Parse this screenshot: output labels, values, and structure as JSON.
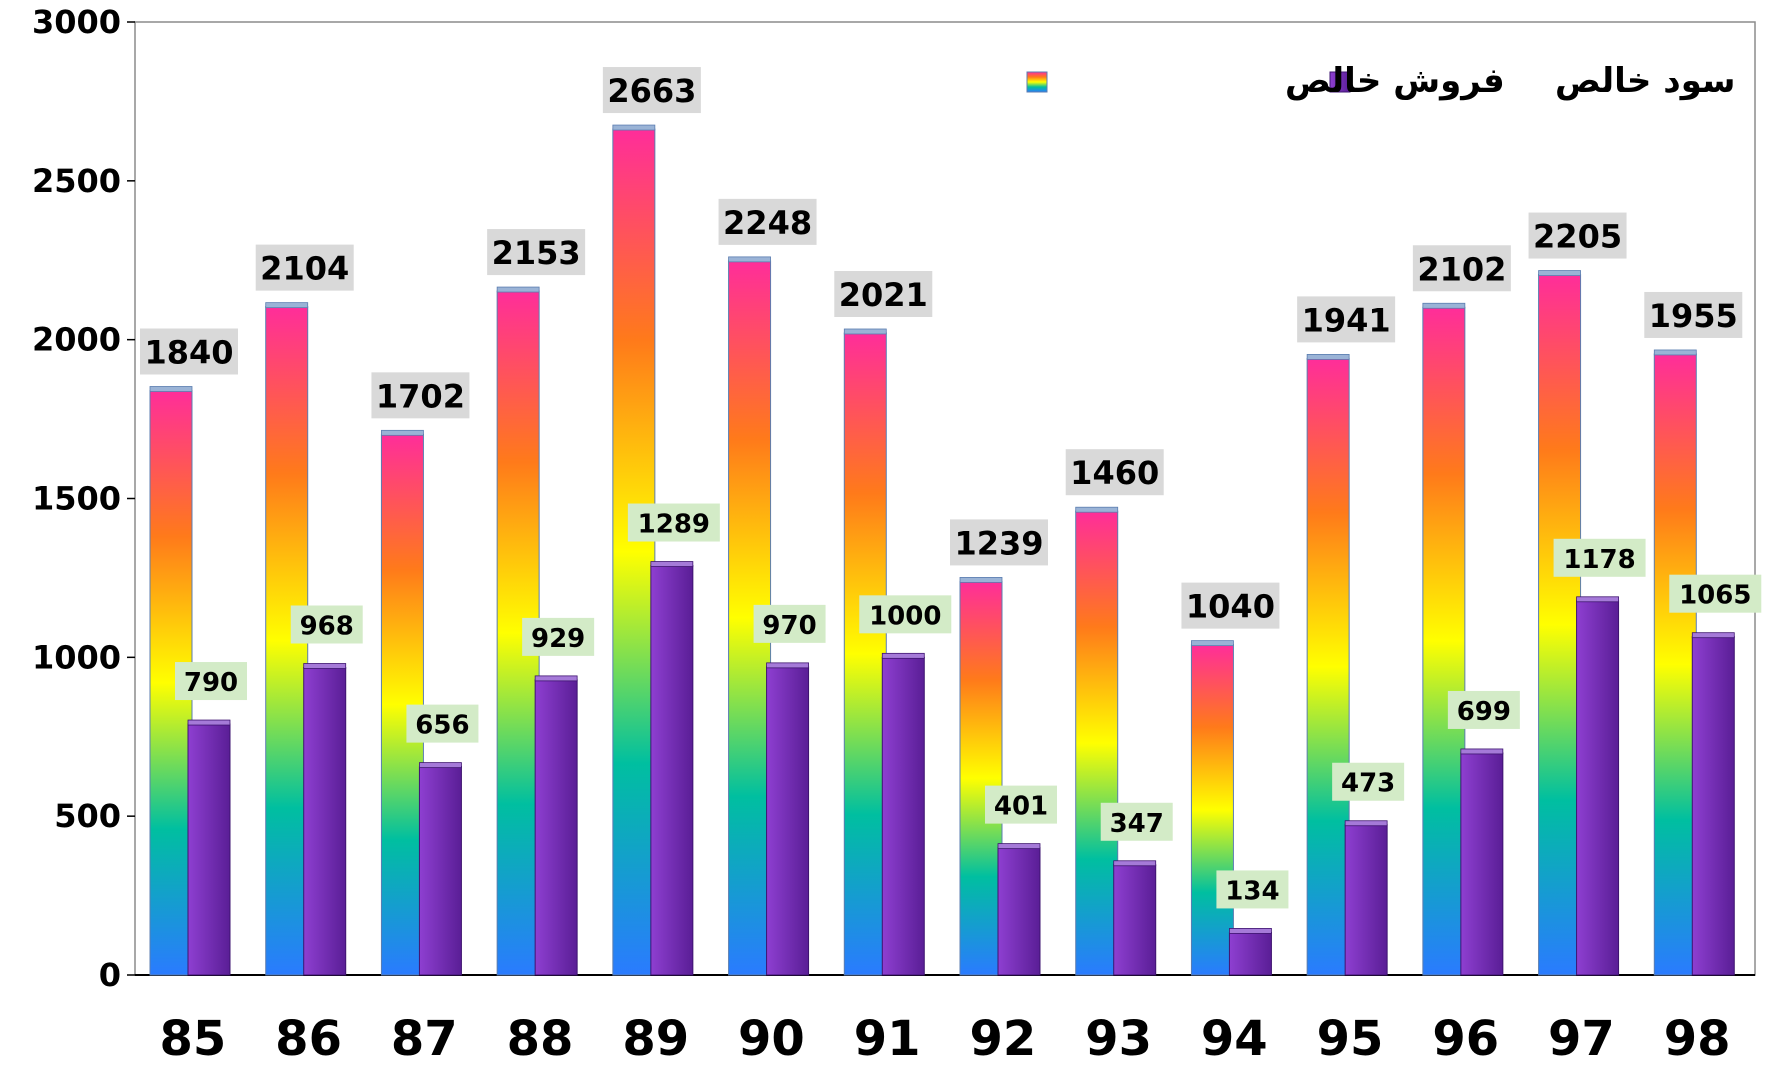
{
  "chart_data": {
    "type": "bar",
    "title": "",
    "xlabel": "",
    "ylabel": "",
    "categories": [
      "85",
      "86",
      "87",
      "88",
      "89",
      "90",
      "91",
      "92",
      "93",
      "94",
      "95",
      "96",
      "97",
      "98"
    ],
    "series": [
      {
        "name": "فروش خالص",
        "values": [
          1840,
          2104,
          1702,
          2153,
          2663,
          2248,
          2021,
          1239,
          1460,
          1040,
          1941,
          2102,
          2205,
          1955
        ],
        "fill": "gradient",
        "gradient_colors": [
          "#ff2d9a",
          "#ff7a1a",
          "#ffff00",
          "#00bfa0",
          "#2a7bff"
        ]
      },
      {
        "name": "سود خالص",
        "values": [
          790,
          968,
          656,
          929,
          1289,
          970,
          1000,
          401,
          347,
          134,
          473,
          699,
          1178,
          1065
        ],
        "fill": "purple",
        "gradient_colors": [
          "#8e3fd1",
          "#5a1e96"
        ]
      }
    ],
    "ylim": [
      0,
      3000
    ],
    "yticks": [
      0,
      500,
      1000,
      1500,
      2000,
      2500,
      3000
    ],
    "legend_position": "top-right",
    "grid": false,
    "data_labels": true,
    "label_backgrounds": {
      "sales": "#d9d9d9",
      "profit": "#d3ebc7"
    }
  }
}
